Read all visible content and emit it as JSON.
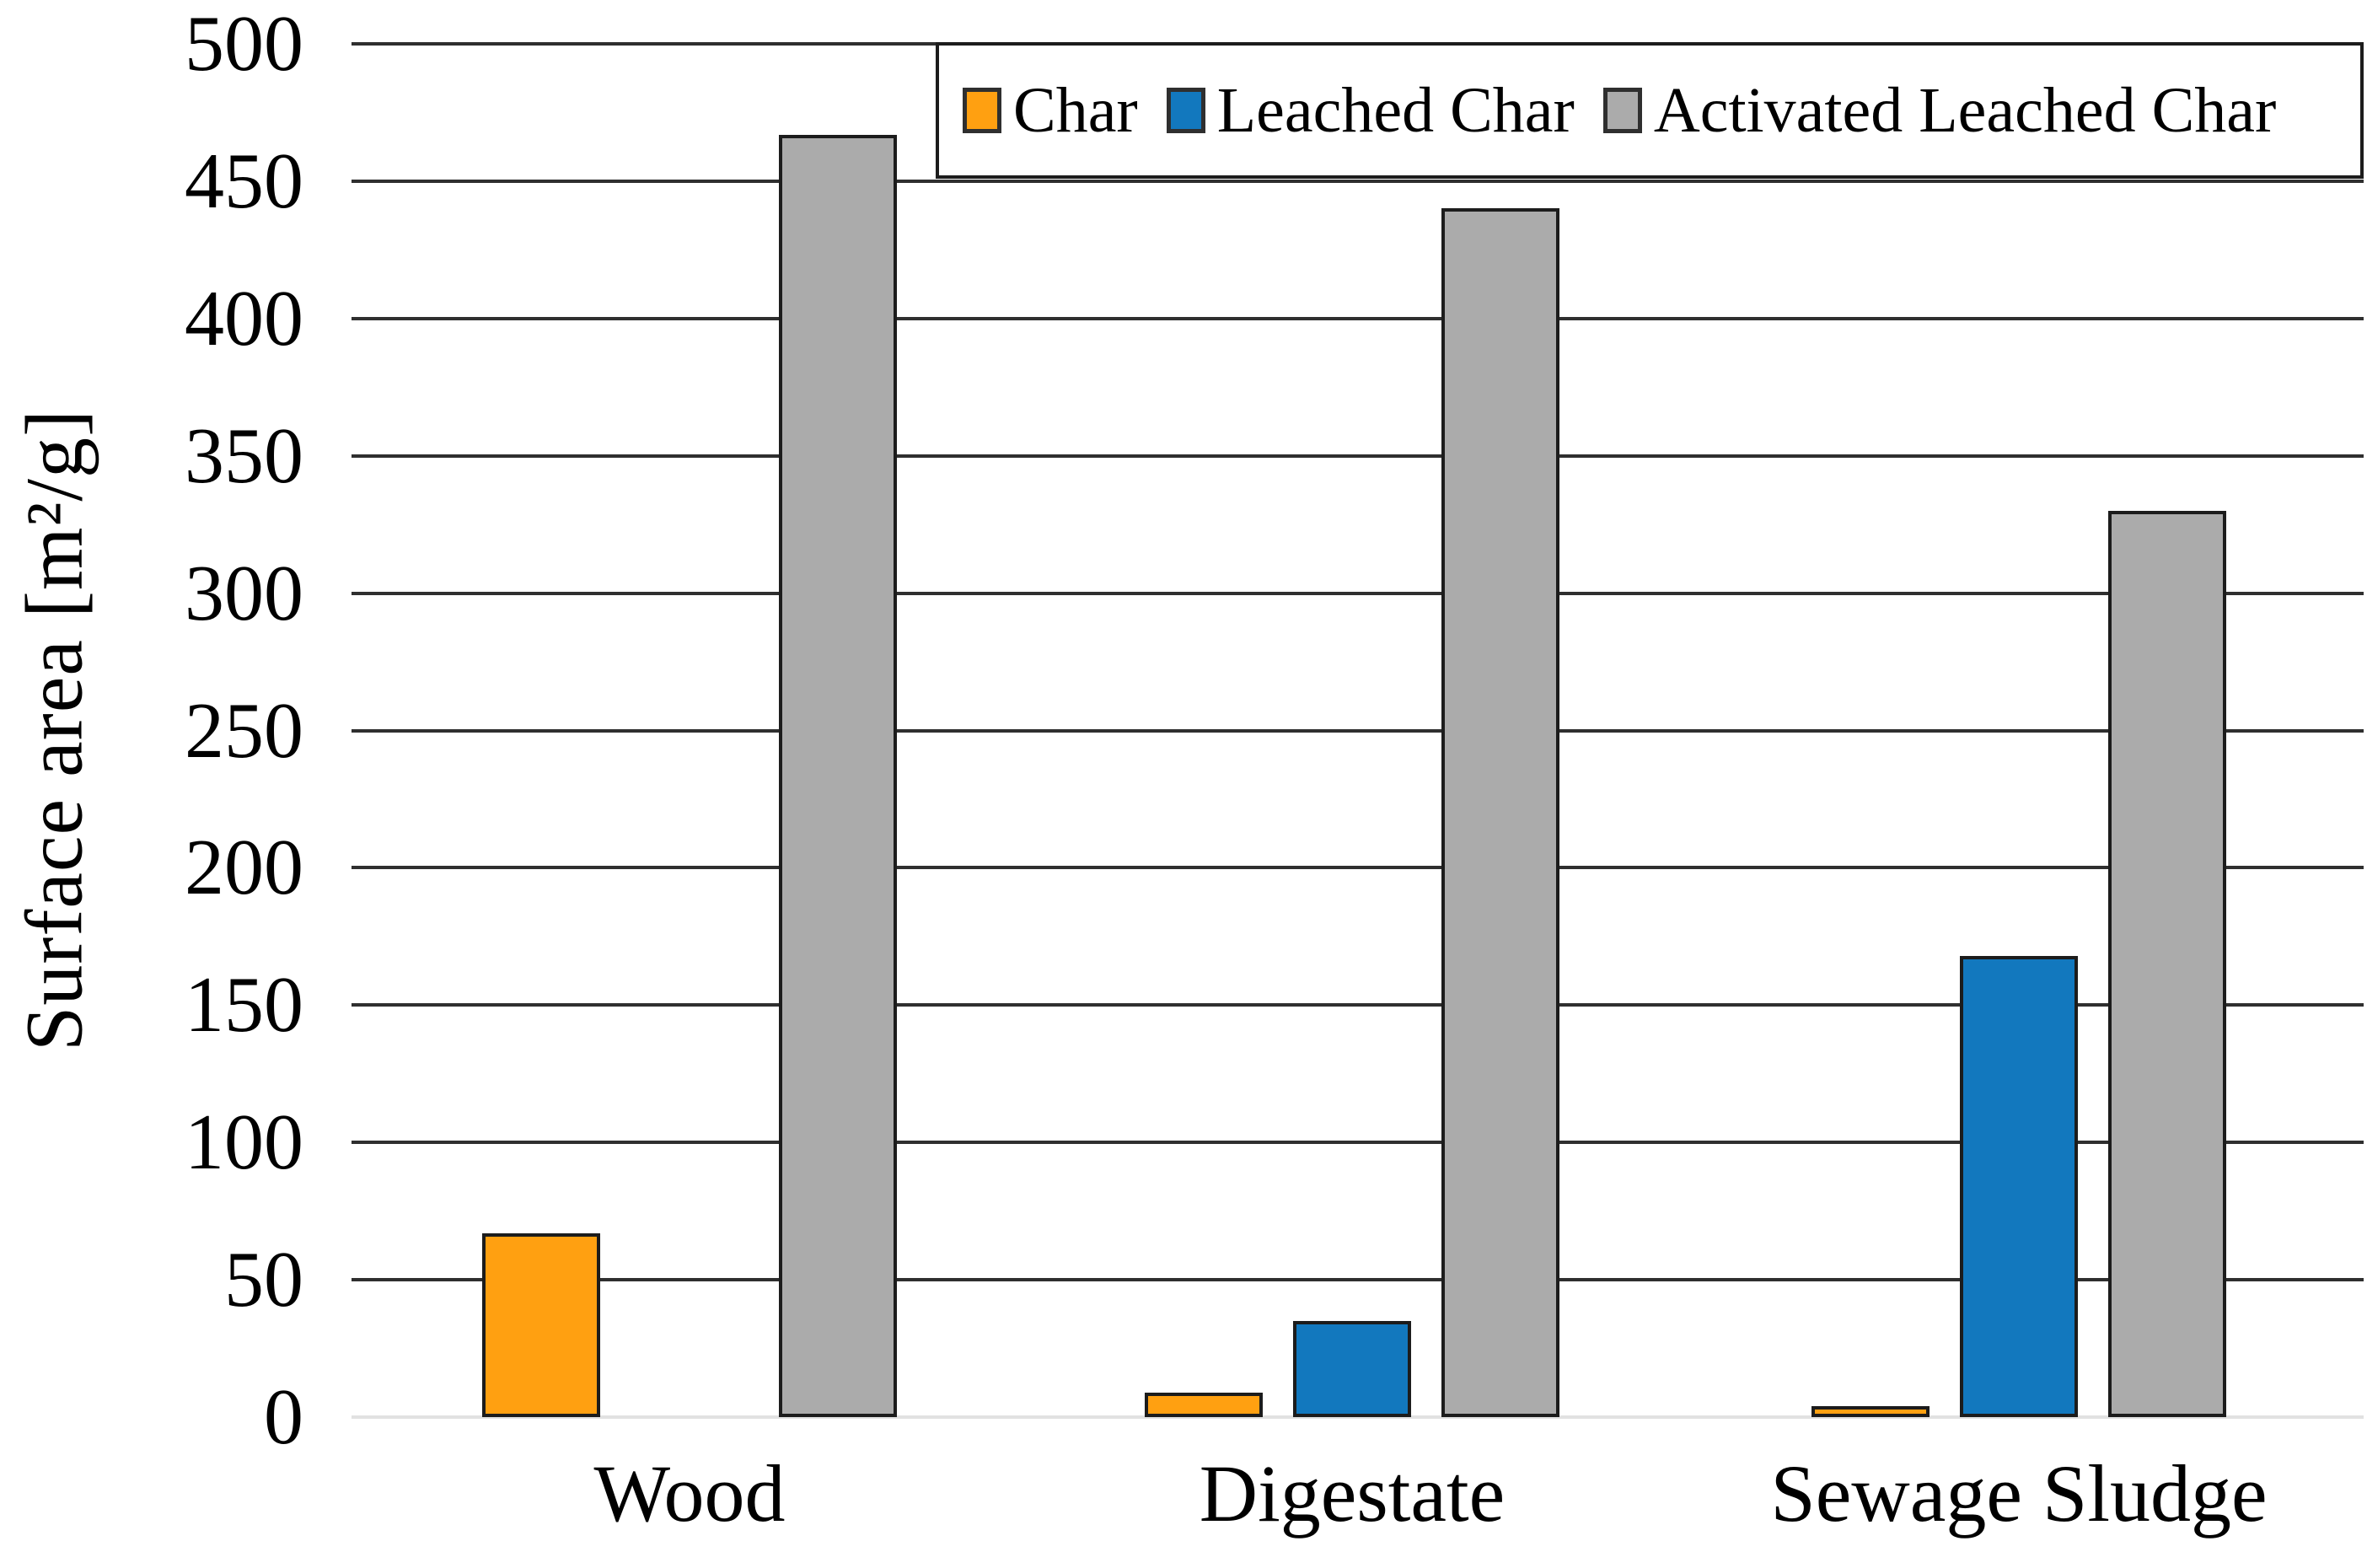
{
  "chart_data": {
    "type": "bar",
    "title": "",
    "categories": [
      "Wood",
      "Digestate",
      "Sewage Sludge"
    ],
    "series": [
      {
        "name": "Char",
        "color": "#FFA011",
        "values": [
          67,
          9,
          4
        ]
      },
      {
        "name": "Leached Char",
        "color": "#1278BE",
        "values": [
          null,
          35,
          168
        ]
      },
      {
        "name": "Activated Leached Char",
        "color": "#ABABAB",
        "values": [
          467,
          440,
          330
        ]
      }
    ],
    "xlabel": "",
    "ylabel": "Surface area [m²/g]",
    "ylim": [
      0,
      500
    ],
    "ytick_step": 50,
    "ytick_labels": [
      "500",
      "450",
      "400",
      "350",
      "300",
      "250",
      "200",
      "150",
      "100",
      "50",
      "0"
    ],
    "grid": true,
    "legend_position": "top-right",
    "colors": {
      "bar_border": "#1c1c1c",
      "gridline": "#2f2f2f",
      "baseline": "#e2e2e2",
      "background": "#ffffff",
      "text": "#000000"
    }
  }
}
